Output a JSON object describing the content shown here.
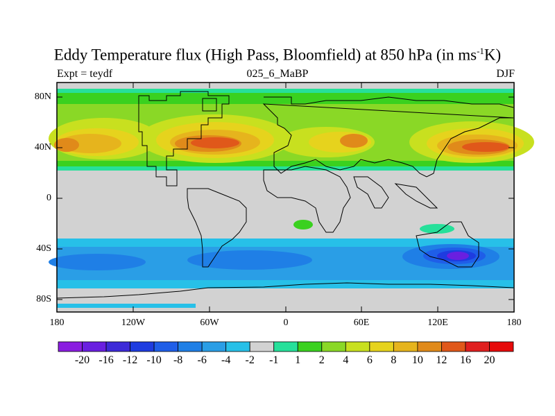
{
  "title": "Eddy Temperature flux (High Pass, Bloomfield) at 850 hPa (in ms",
  "title_sup": "-1",
  "title_end": "K)",
  "expt_label": "Expt = teydf",
  "run_label": "025_6_MaBP",
  "season_label": "DJF",
  "lat_labels": [
    "80N",
    "40N",
    "0",
    "40S",
    "80S"
  ],
  "lon_labels": [
    "180",
    "120W",
    "60W",
    "0",
    "60E",
    "120E",
    "180"
  ],
  "colorbar": {
    "labels": [
      "-20",
      "-16",
      "-12",
      "-10",
      "-8",
      "-6",
      "-4",
      "-2",
      "-1",
      "1",
      "2",
      "4",
      "6",
      "8",
      "10",
      "12",
      "16",
      "20"
    ],
    "colors": [
      "#8a1de0",
      "#6a1fe0",
      "#3d2ad8",
      "#1e3ce0",
      "#1f5ee8",
      "#1f7fe6",
      "#2a9ee6",
      "#27c0e8",
      "#d2d2d2",
      "#26e09a",
      "#3ad11f",
      "#8ad826",
      "#c8e01f",
      "#e6d31d",
      "#e6b41d",
      "#e08a1a",
      "#e0581a",
      "#e01f1f",
      "#e60a0a"
    ]
  },
  "colors": {
    "land_mask": "#d2d2d2",
    "contour_line": "#000000"
  }
}
